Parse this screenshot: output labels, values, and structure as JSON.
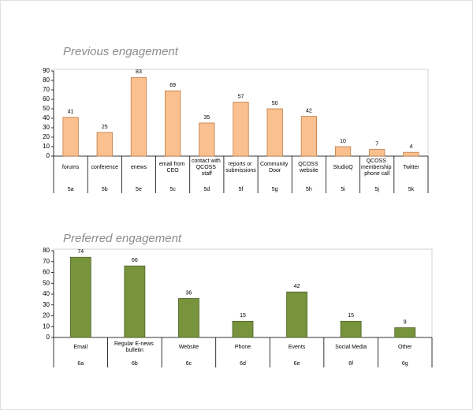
{
  "chart_data": [
    {
      "type": "bar",
      "title": "Previous engagement",
      "categories": [
        "forums",
        "conference",
        "enews",
        "email from CEO",
        "contact with QCOSS staff",
        "reports or submissions",
        "Community Door",
        "QCOSS website",
        "StudioQ",
        "QCOSS membership phone call",
        "Twitter"
      ],
      "category_codes": [
        "5a",
        "5b",
        "5e",
        "5c",
        "5d",
        "5f",
        "5g",
        "5h",
        "5i",
        "5j",
        "5k"
      ],
      "values": [
        41,
        25,
        83,
        69,
        35,
        57,
        50,
        42,
        10,
        7,
        4
      ],
      "color": "#fac090",
      "ylim": [
        0,
        90
      ],
      "yticks": [
        0,
        10,
        20,
        30,
        40,
        50,
        60,
        70,
        80,
        90
      ]
    },
    {
      "type": "bar",
      "title": "Preferred engagement",
      "categories": [
        "Email",
        "Regular E-news bulletin",
        "Website",
        "Phone",
        "Events",
        "Social Media",
        "Other"
      ],
      "category_codes": [
        "6a",
        "6b",
        "6c",
        "6d",
        "6e",
        "6f",
        "6g"
      ],
      "values": [
        74,
        66,
        36,
        15,
        42,
        15,
        9
      ],
      "color": "#77933c",
      "ylim": [
        0,
        80
      ],
      "yticks": [
        0,
        10,
        20,
        30,
        40,
        50,
        60,
        70,
        80
      ]
    }
  ]
}
